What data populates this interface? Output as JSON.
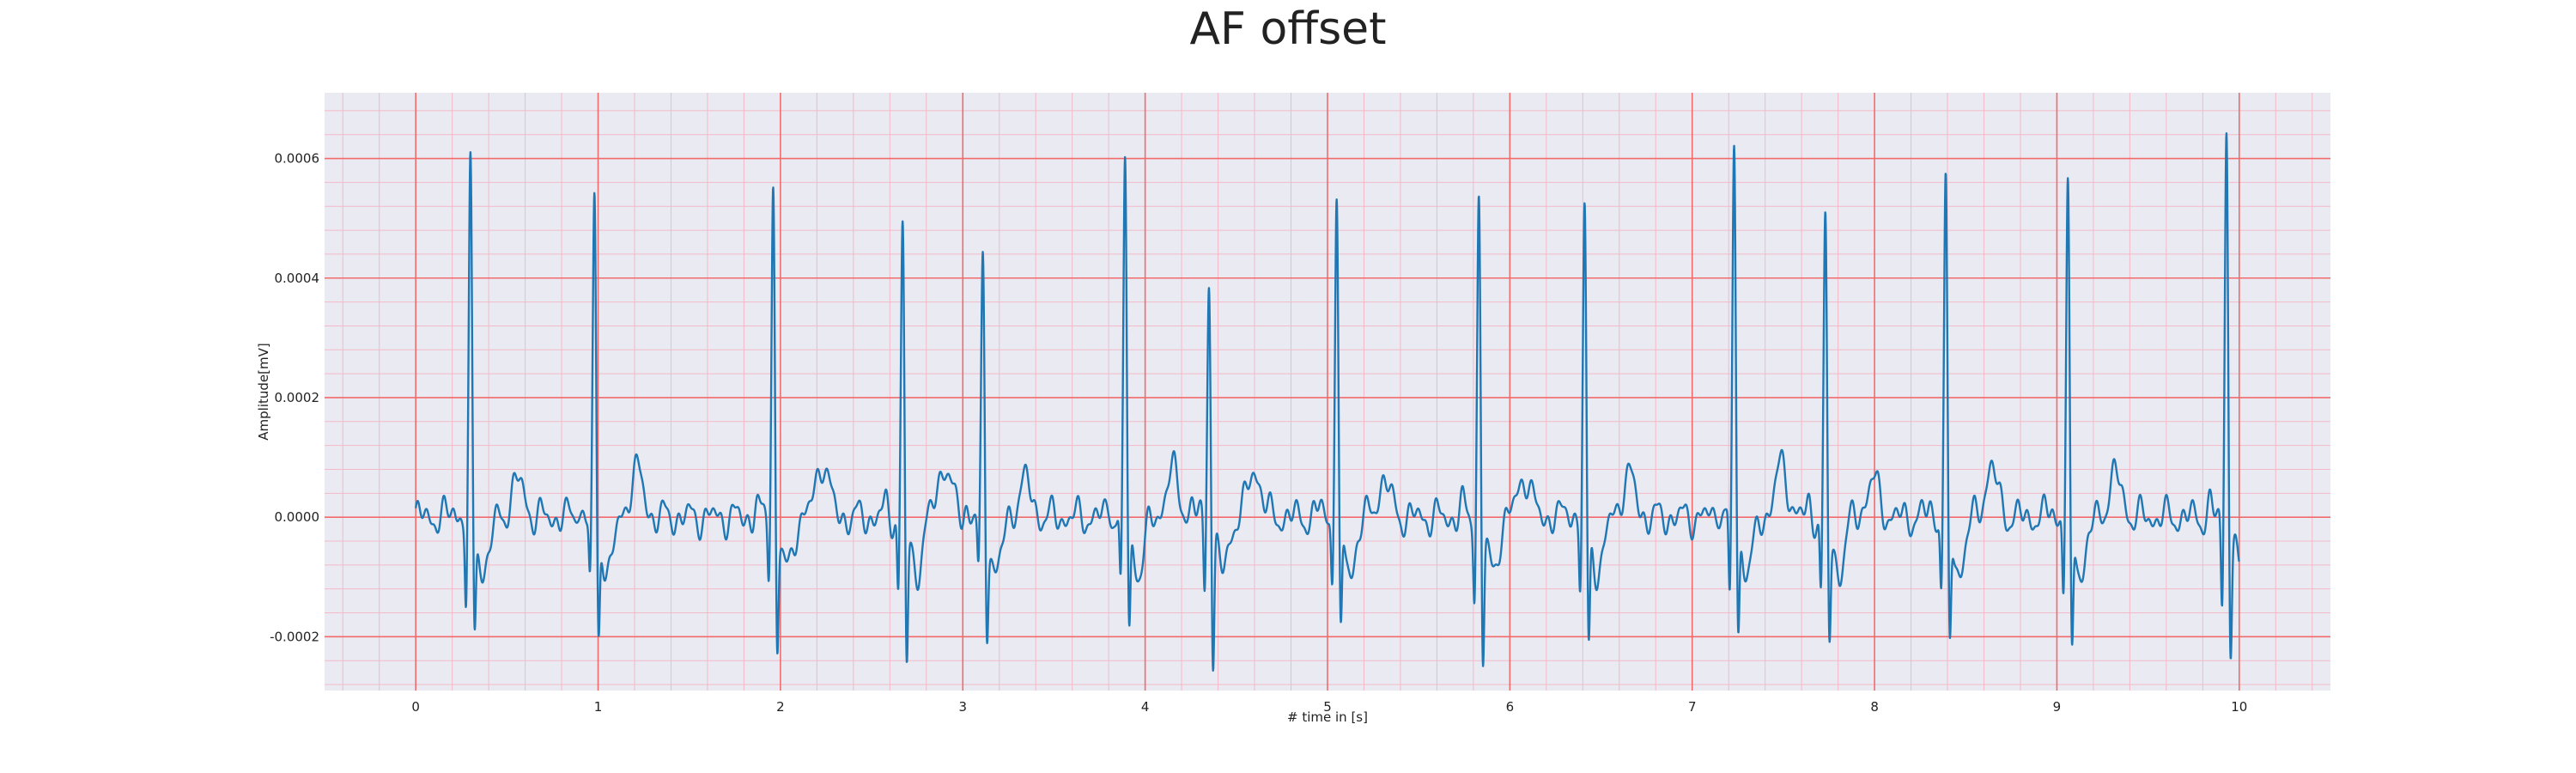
{
  "chart_data": {
    "type": "line",
    "title": "AF offset",
    "xlabel": "# time in [s]",
    "ylabel": "Amplitude[mV]",
    "xlim": [
      -0.5,
      10.5
    ],
    "ylim": [
      -0.00029,
      0.00071
    ],
    "x_ticks": [
      0,
      1,
      2,
      3,
      4,
      5,
      6,
      7,
      8,
      9,
      10
    ],
    "x_tick_labels": [
      "0",
      "1",
      "2",
      "3",
      "4",
      "5",
      "6",
      "7",
      "8",
      "9",
      "10"
    ],
    "y_ticks": [
      -0.0002,
      0.0,
      0.0002,
      0.0004,
      0.0006
    ],
    "y_tick_labels": [
      "-0.0002",
      "0.0000",
      "0.0002",
      "0.0004",
      "0.0006"
    ],
    "major_grid": true,
    "minor_grid": true,
    "legend": "none",
    "series": [
      {
        "color": "#1f77b4",
        "beats": [
          {
            "t": 0.3,
            "r": 0.00058,
            "s": -0.000185,
            "q": -0.00015
          },
          {
            "t": 0.98,
            "r": 0.00053,
            "s": -0.000195,
            "q": -0.00011
          },
          {
            "t": 1.96,
            "r": 0.00056,
            "s": -0.000215,
            "q": -9e-05
          },
          {
            "t": 2.67,
            "r": 0.00049,
            "s": -0.000245,
            "q": -0.00013
          },
          {
            "t": 3.11,
            "r": 0.00042,
            "s": -0.000175,
            "q": -9e-05
          },
          {
            "t": 3.89,
            "r": 0.000605,
            "s": -0.000185,
            "q": -0.00013
          },
          {
            "t": 4.35,
            "r": 0.00041,
            "s": -0.000235,
            "q": -0.00012
          },
          {
            "t": 5.05,
            "r": 0.00054,
            "s": -0.000205,
            "q": -0.0001
          },
          {
            "t": 5.83,
            "r": 0.000535,
            "s": -0.000235,
            "q": -0.000125
          },
          {
            "t": 6.41,
            "r": 0.00051,
            "s": -0.000215,
            "q": -0.000125
          },
          {
            "t": 7.23,
            "r": 0.000635,
            "s": -0.000195,
            "q": -0.000155
          },
          {
            "t": 7.73,
            "r": 0.00049,
            "s": -0.0002,
            "q": -0.00013
          },
          {
            "t": 8.39,
            "r": 0.00056,
            "s": -0.00022,
            "q": -0.00012
          },
          {
            "t": 9.06,
            "r": 0.000555,
            "s": -0.000235,
            "q": -0.00013
          },
          {
            "t": 9.93,
            "r": 0.00066,
            "s": -0.00021,
            "q": -0.000155
          }
        ],
        "t_waves": [
          {
            "t": 0.56,
            "a": 6e-05
          },
          {
            "t": 1.21,
            "a": 7.8e-05
          },
          {
            "t": 2.23,
            "a": 9.5e-05
          },
          {
            "t": 2.9,
            "a": 9e-05
          },
          {
            "t": 3.34,
            "a": 6e-05
          },
          {
            "t": 4.15,
            "a": 7.5e-05
          },
          {
            "t": 4.6,
            "a": 8e-05
          },
          {
            "t": 5.31,
            "a": 6e-05
          },
          {
            "t": 6.08,
            "a": 7e-05
          },
          {
            "t": 6.65,
            "a": 7e-05
          },
          {
            "t": 7.49,
            "a": 8.5e-05
          },
          {
            "t": 7.99,
            "a": 6e-05
          },
          {
            "t": 8.64,
            "a": 8e-05
          },
          {
            "t": 9.32,
            "a": 7e-05
          }
        ]
      }
    ]
  }
}
